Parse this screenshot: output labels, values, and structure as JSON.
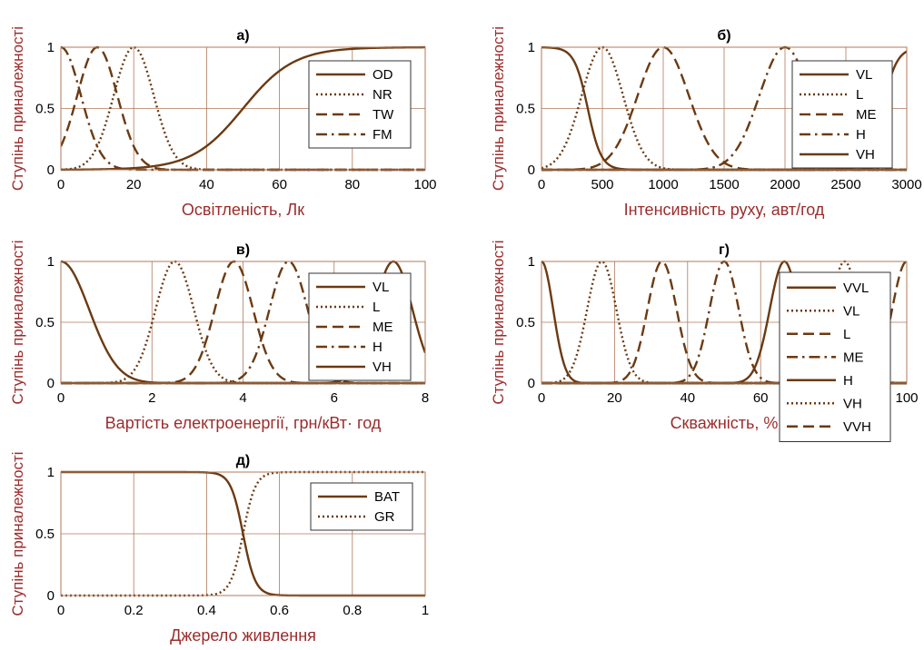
{
  "chart_data": [
    {
      "type": "line",
      "title": "а)",
      "xlabel": "Освітленість, Лк",
      "ylabel": "Ступінь приналежності",
      "xlim": [
        0,
        100
      ],
      "ylim": [
        0,
        1
      ],
      "xticks": [
        0,
        20,
        40,
        60,
        80,
        100
      ],
      "yticks": [
        0,
        0.5,
        1
      ],
      "xtick_labels": [
        "0",
        "20",
        "40",
        "60",
        "80",
        "100"
      ],
      "ytick_labels": [
        "0",
        "0.5",
        "1"
      ],
      "grid": true,
      "legend_position": "right",
      "series": [
        {
          "name": "OD",
          "style": "solid",
          "kind": "sigmoid",
          "center": 50,
          "width": 7
        },
        {
          "name": "NR",
          "style": "dotted",
          "kind": "gauss",
          "center": 20,
          "sigma": 5.5
        },
        {
          "name": "TW",
          "style": "dashed",
          "kind": "gauss",
          "center": 10,
          "sigma": 5.5
        },
        {
          "name": "FM",
          "style": "dashdot",
          "kind": "gauss",
          "center": 0,
          "sigma": 5.5
        }
      ]
    },
    {
      "type": "line",
      "title": "б)",
      "xlabel": "Інтенсивність руху, авт/год",
      "ylabel": "Ступінь приналежності",
      "xlim": [
        0,
        3000
      ],
      "ylim": [
        0,
        1
      ],
      "xticks": [
        0,
        500,
        1000,
        1500,
        2000,
        2500,
        3000
      ],
      "yticks": [
        0,
        0.5,
        1
      ],
      "xtick_labels": [
        "0",
        "500",
        "1000",
        "1500",
        "2000",
        "2500",
        "3000"
      ],
      "ytick_labels": [
        "0",
        "0.5",
        "1"
      ],
      "grid": true,
      "legend_position": "right",
      "series": [
        {
          "name": "VL",
          "style": "solid",
          "kind": "zshape",
          "center": 380,
          "width": 55
        },
        {
          "name": "L",
          "style": "dotted",
          "kind": "gauss",
          "center": 500,
          "sigma": 170
        },
        {
          "name": "ME",
          "style": "dashed",
          "kind": "gauss",
          "center": 1000,
          "sigma": 210
        },
        {
          "name": "H",
          "style": "dashdot",
          "kind": "gauss",
          "center": 2000,
          "sigma": 210
        },
        {
          "name": "VH",
          "style": "solid",
          "kind": "sigmoid",
          "center": 2800,
          "width": 60
        }
      ]
    },
    {
      "type": "line",
      "title": "в)",
      "xlabel": "Вартість електроенергії, грн/кВт· год",
      "ylabel": "Ступінь приналежності",
      "xlim": [
        0,
        8
      ],
      "ylim": [
        0,
        1
      ],
      "xticks": [
        0,
        2,
        4,
        6,
        8
      ],
      "yticks": [
        0,
        0.5,
        1
      ],
      "xtick_labels": [
        "0",
        "2",
        "4",
        "6",
        "8"
      ],
      "ytick_labels": [
        "0",
        "0.5",
        "1"
      ],
      "grid": true,
      "legend_position": "right",
      "series": [
        {
          "name": "VL",
          "style": "solid",
          "kind": "gauss",
          "center": 0,
          "sigma": 0.62
        },
        {
          "name": "L",
          "style": "dotted",
          "kind": "gauss",
          "center": 2.5,
          "sigma": 0.42
        },
        {
          "name": "ME",
          "style": "dashed",
          "kind": "gauss",
          "center": 3.8,
          "sigma": 0.42
        },
        {
          "name": "H",
          "style": "dashdot",
          "kind": "gauss",
          "center": 5.0,
          "sigma": 0.42
        },
        {
          "name": "VH",
          "style": "solid",
          "kind": "gauss",
          "center": 7.3,
          "sigma": 0.42
        }
      ]
    },
    {
      "type": "line",
      "title": "г)",
      "xlabel": "Скважність, %",
      "ylabel": "Ступінь приналежності",
      "xlim": [
        0,
        100
      ],
      "ylim": [
        0,
        1
      ],
      "xticks": [
        0,
        20,
        40,
        60,
        100
      ],
      "yticks": [
        0,
        0.5,
        1
      ],
      "xtick_labels": [
        "0",
        "20",
        "40",
        "60",
        "100"
      ],
      "ytick_labels": [
        "0",
        "0.5",
        "1"
      ],
      "grid": true,
      "legend_position": "right",
      "series": [
        {
          "name": "VVL",
          "style": "solid",
          "kind": "gauss",
          "center": 0,
          "sigma": 3.2
        },
        {
          "name": "VL",
          "style": "dotted",
          "kind": "gauss",
          "center": 16.5,
          "sigma": 4.0
        },
        {
          "name": "L",
          "style": "dashed",
          "kind": "gauss",
          "center": 33,
          "sigma": 4.0
        },
        {
          "name": "ME",
          "style": "dashdot",
          "kind": "gauss",
          "center": 50,
          "sigma": 4.0
        },
        {
          "name": "H",
          "style": "solid",
          "kind": "gauss",
          "center": 66.5,
          "sigma": 4.0
        },
        {
          "name": "VH",
          "style": "dotted",
          "kind": "gauss",
          "center": 83,
          "sigma": 4.0
        },
        {
          "name": "VVH",
          "style": "dashed",
          "kind": "gauss",
          "center": 100,
          "sigma": 4.0
        }
      ]
    },
    {
      "type": "line",
      "title": "д)",
      "xlabel": "Джерело живлення",
      "ylabel": "Ступінь приналежності",
      "xlim": [
        0,
        1
      ],
      "ylim": [
        0,
        1
      ],
      "xticks": [
        0,
        0.2,
        0.4,
        0.6,
        0.8,
        1
      ],
      "yticks": [
        0,
        0.5,
        1
      ],
      "xtick_labels": [
        "0",
        "0.2",
        "0.4",
        "0.6",
        "0.8",
        "1"
      ],
      "ytick_labels": [
        "0",
        "0.5",
        "1"
      ],
      "grid": true,
      "legend_position": "top-right",
      "series": [
        {
          "name": "BAT",
          "style": "solid",
          "kind": "zshape",
          "center": 0.5,
          "width": 0.017
        },
        {
          "name": "GR",
          "style": "dotted",
          "kind": "sigmoid",
          "center": 0.5,
          "width": 0.017
        }
      ]
    }
  ],
  "colors": {
    "line": "#6b3a12",
    "grid": "#b07a5a",
    "axis_text": "#000000",
    "label_text": "#9b2c2c"
  }
}
